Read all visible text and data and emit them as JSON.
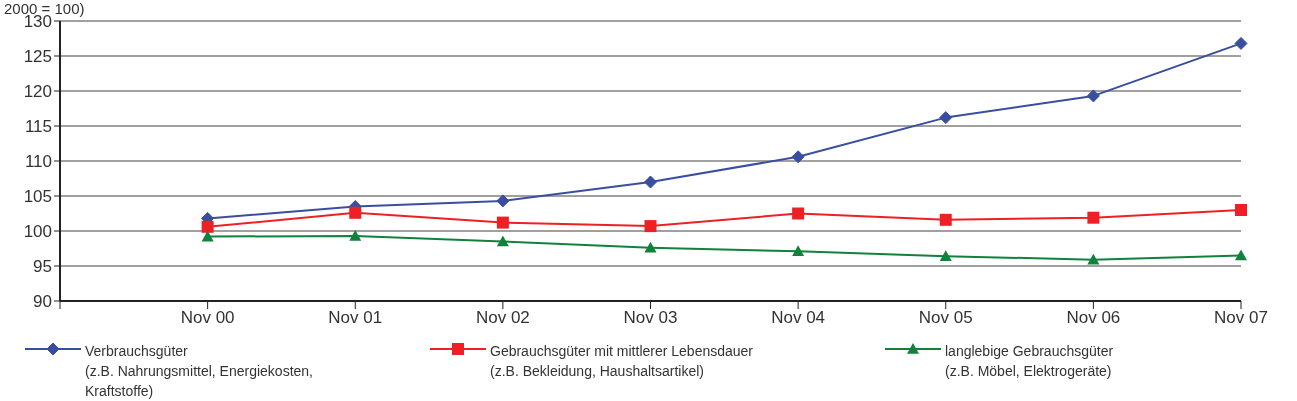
{
  "chart_data": {
    "type": "line",
    "ylabel": "2000 = 100)",
    "categories": [
      null,
      "Nov 00",
      "Nov 01",
      "Nov 02",
      "Nov 03",
      "Nov 04",
      "Nov 05",
      "Nov 06",
      "Nov 07"
    ],
    "series": [
      {
        "name": "Verbrauchsgüter\n(z.B. Nahrungsmittel, Energiekosten,\nKraftstoffe)",
        "color": "#3a4ea0",
        "marker": "diamond",
        "values": [
          null,
          101.8,
          103.5,
          104.3,
          107.0,
          110.6,
          116.2,
          119.3,
          126.8
        ]
      },
      {
        "name": "Gebrauchsgüter mit mittlerer Lebensdauer\n(z.B. Bekleidung, Haushaltsartikel)",
        "color": "#ee2025",
        "marker": "square",
        "values": [
          null,
          100.6,
          102.6,
          101.2,
          100.7,
          102.5,
          101.6,
          101.9,
          103.0
        ]
      },
      {
        "name": "langlebige Gebrauchsgüter\n(z.B. Möbel, Elektrogeräte)",
        "color": "#12813c",
        "marker": "triangle",
        "values": [
          null,
          99.2,
          99.3,
          98.5,
          97.6,
          97.1,
          96.4,
          95.9,
          96.5
        ]
      }
    ],
    "ylim": [
      90,
      130
    ],
    "yticks": [
      90,
      95,
      100,
      105,
      110,
      115,
      120,
      125,
      130
    ],
    "grid": "y",
    "legend": "bottom",
    "line_style": "solid"
  }
}
